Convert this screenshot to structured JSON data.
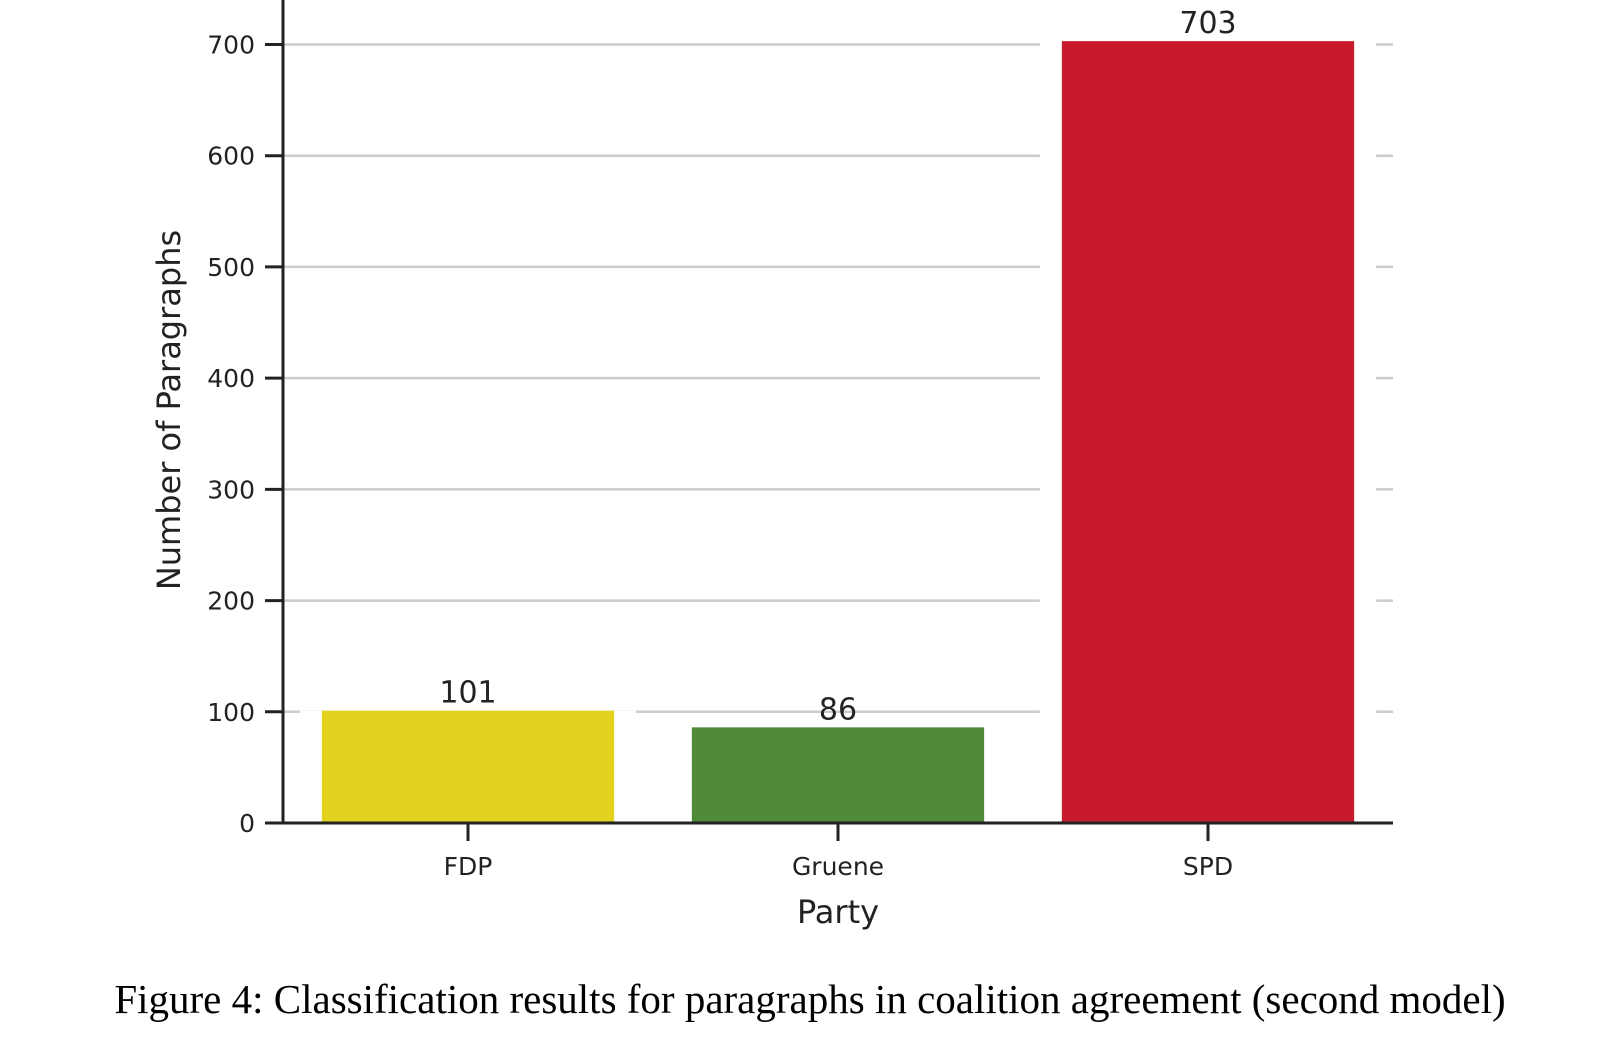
{
  "chart_data": {
    "type": "bar",
    "categories": [
      "FDP",
      "Gruene",
      "SPD"
    ],
    "values": [
      101,
      86,
      703
    ],
    "data_labels": [
      "101",
      "86",
      "703"
    ],
    "colors": [
      "#E0D21F",
      "#4F8A39",
      "#C81A2A"
    ],
    "xlabel": "Party",
    "ylabel": "Number of Paragraphs",
    "ylim": [
      0,
      740
    ],
    "yticks": [
      0,
      100,
      200,
      300,
      400,
      500,
      600,
      700
    ],
    "grid": "horizontal"
  },
  "caption": "Figure 4: Classification results for paragraphs in coalition agreement (second model)"
}
